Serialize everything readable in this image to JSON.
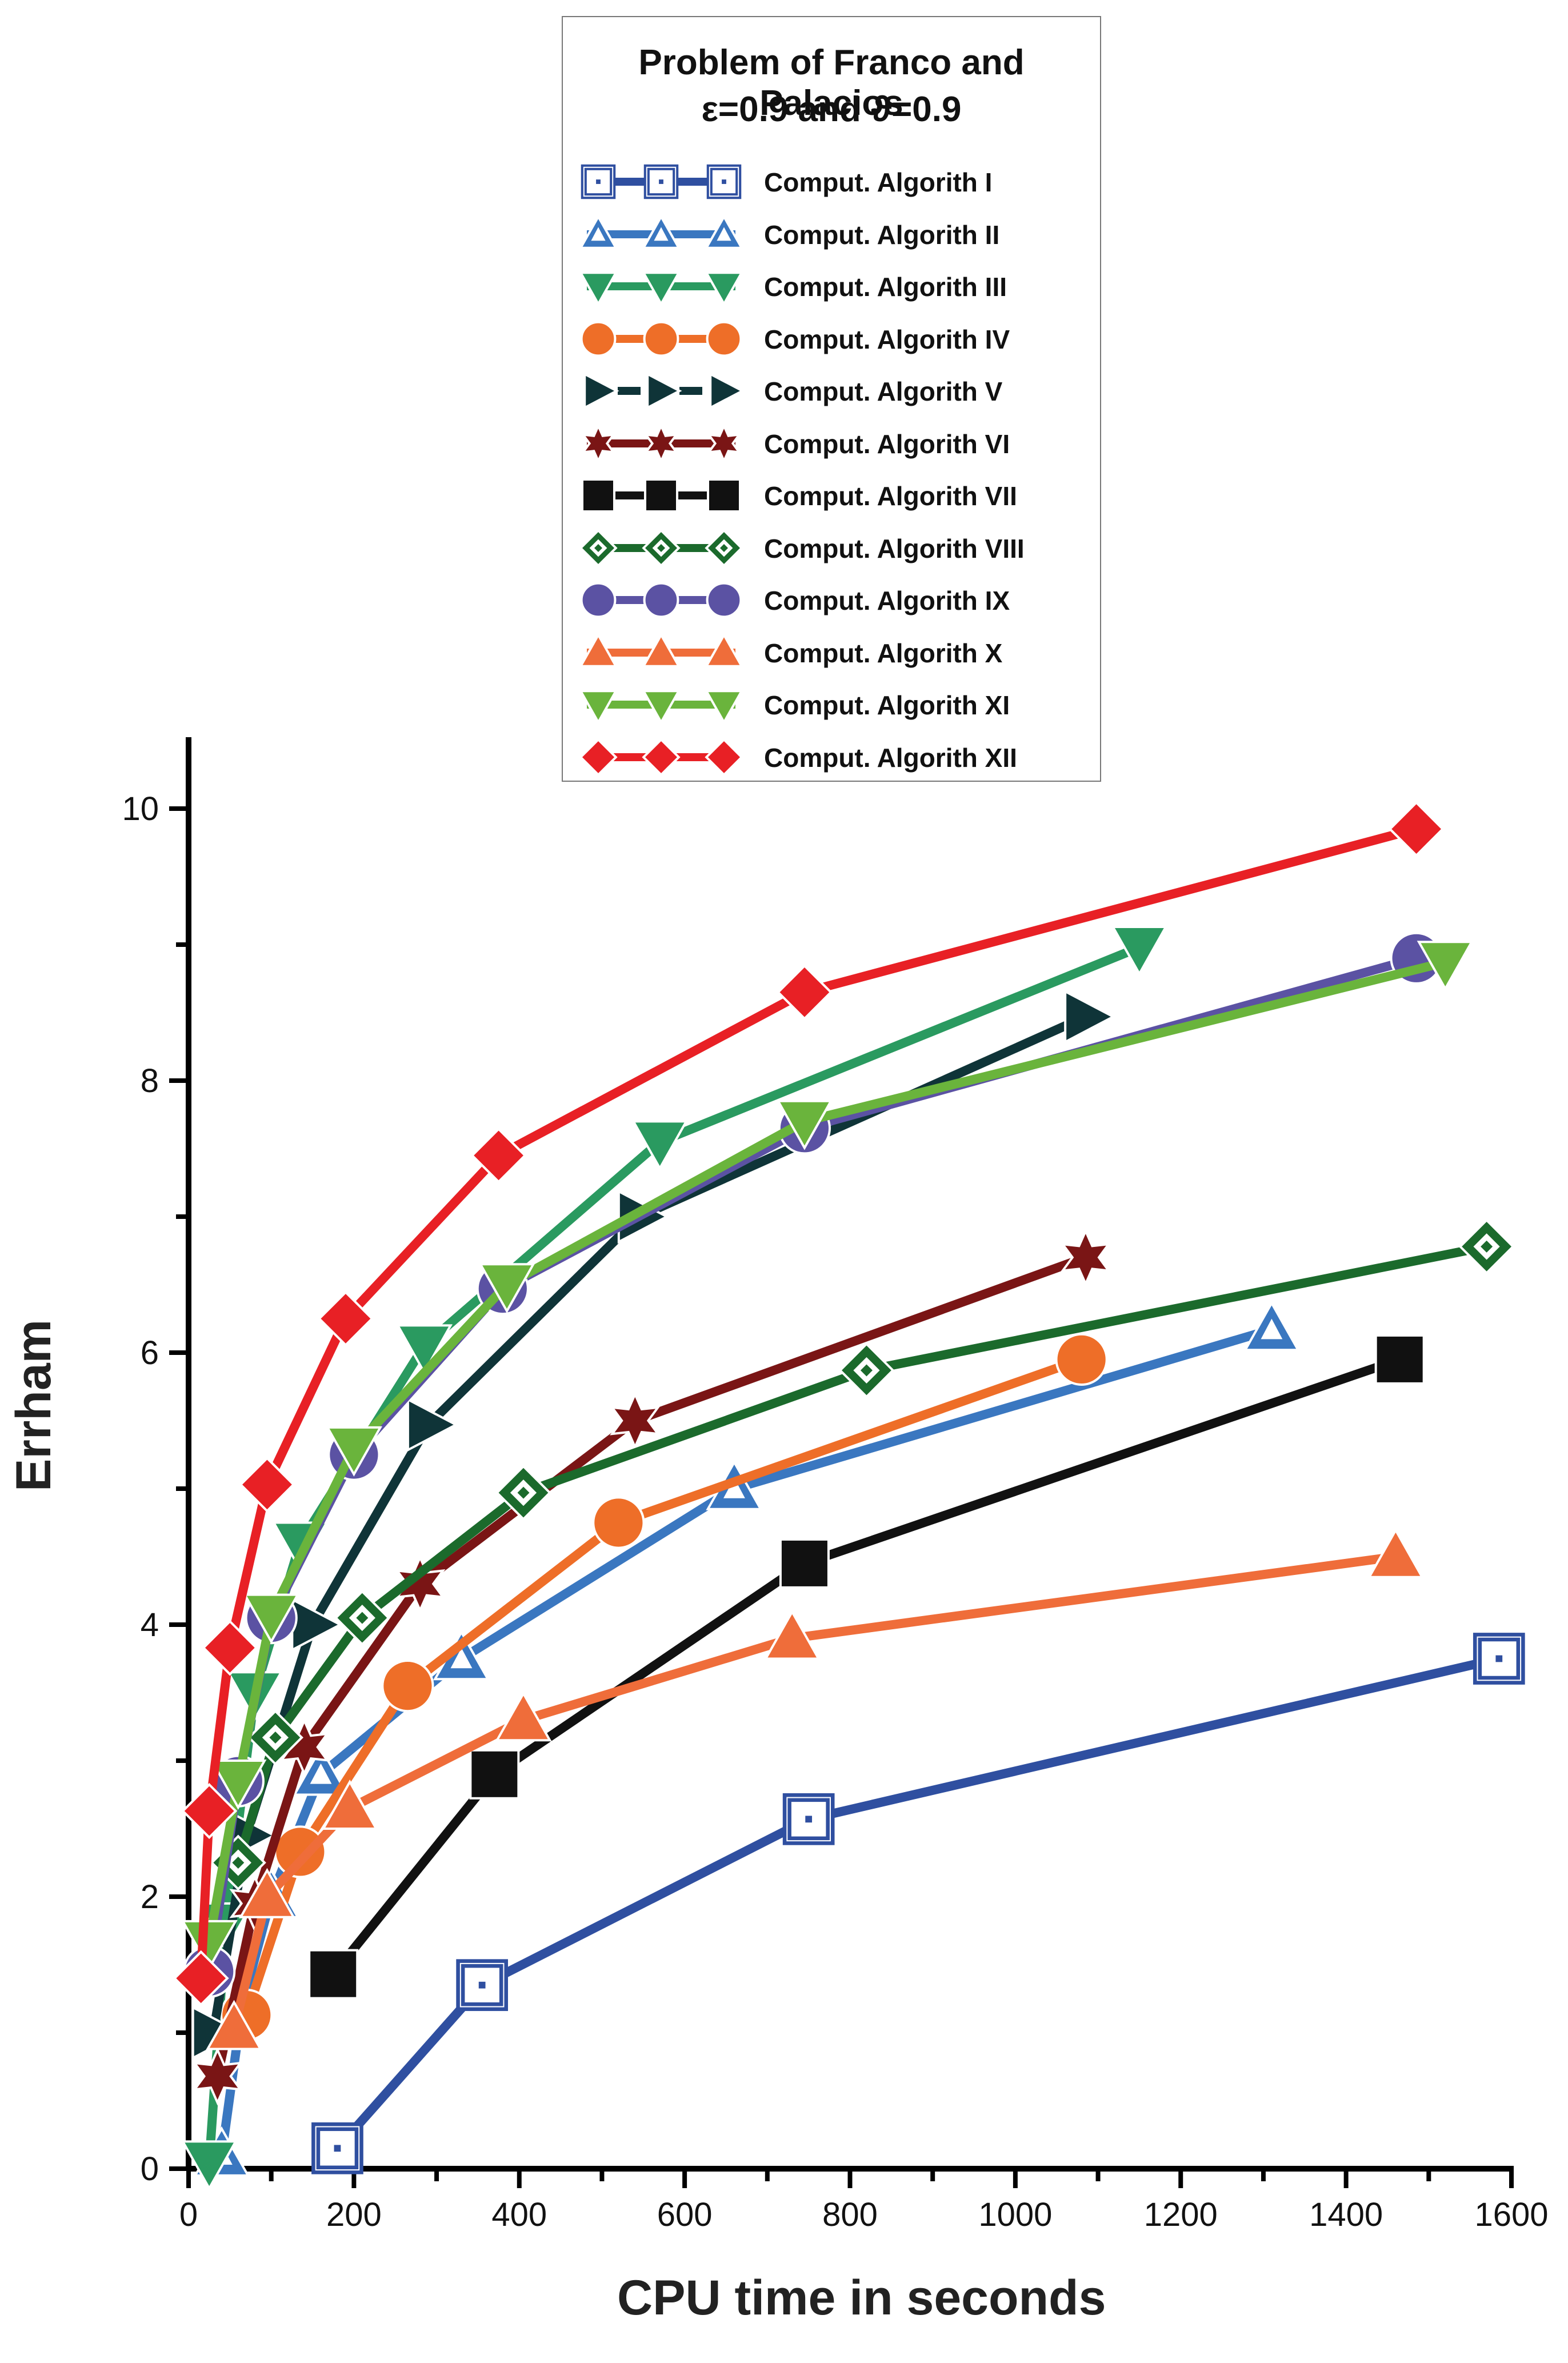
{
  "chart_data": {
    "type": "line",
    "title": "Problem of Franco and Palacios",
    "subtitle": "ε=0.9 and ϑ=0.9",
    "xlabel": "CPU time in seconds",
    "ylabel": "Errham",
    "xlim": [
      0,
      1600
    ],
    "ylim": [
      0,
      10
    ],
    "xticks": [
      0,
      200,
      400,
      600,
      800,
      1000,
      1200,
      1400,
      1600
    ],
    "yticks": [
      0,
      2,
      4,
      6,
      8,
      10
    ],
    "grid": false,
    "legend_position": "top-center",
    "series": [
      {
        "name": "Comput. Algorith I",
        "color": "#2f4fa0",
        "marker": "square-open",
        "x": [
          180,
          355,
          750,
          1585
        ],
        "y": [
          0.15,
          1.35,
          2.57,
          3.75
        ]
      },
      {
        "name": "Comput. Algorith II",
        "color": "#3a77c0",
        "marker": "triangle-open",
        "x": [
          40,
          65,
          100,
          160,
          330,
          660,
          1310
        ],
        "y": [
          0.1,
          1.2,
          2.0,
          2.9,
          3.75,
          5.0,
          6.17
        ]
      },
      {
        "name": "Comput. Algorith III",
        "color": "#2a9a60",
        "marker": "triangle-down",
        "x": [
          25,
          45,
          80,
          135,
          285,
          570,
          1150
        ],
        "y": [
          0.05,
          1.8,
          3.5,
          4.6,
          6.05,
          7.55,
          8.98
        ]
      },
      {
        "name": "Comput. Algorith IV",
        "color": "#ee6e28",
        "marker": "circle",
        "x": [
          70,
          135,
          265,
          520,
          1080
        ],
        "y": [
          1.13,
          2.33,
          3.55,
          4.75,
          5.95
        ]
      },
      {
        "name": "Comput. Algorith V",
        "color": "#0f3438",
        "marker": "triangle-right",
        "x": [
          30,
          70,
          150,
          290,
          545,
          1085
        ],
        "y": [
          1.0,
          2.45,
          4.0,
          5.47,
          7.0,
          8.47
        ]
      },
      {
        "name": "Comput. Algorith VI",
        "color": "#7a1515",
        "marker": "star",
        "x": [
          35,
          80,
          140,
          280,
          540,
          1085
        ],
        "y": [
          0.68,
          1.95,
          3.1,
          4.3,
          5.5,
          6.7
        ]
      },
      {
        "name": "Comput. Algorith VII",
        "color": "#111111",
        "marker": "square",
        "x": [
          175,
          370,
          745,
          1465
        ],
        "y": [
          1.43,
          2.9,
          4.45,
          5.95
        ]
      },
      {
        "name": "Comput. Algorith VIII",
        "color": "#1b6a2c",
        "marker": "diamond-open",
        "x": [
          60,
          105,
          210,
          405,
          820,
          1570
        ],
        "y": [
          2.25,
          3.17,
          4.05,
          4.97,
          5.87,
          6.78
        ]
      },
      {
        "name": "Comput. Algorith IX",
        "color": "#5b52a3",
        "marker": "circle",
        "x": [
          25,
          60,
          100,
          200,
          380,
          745,
          1485
        ],
        "y": [
          1.45,
          2.85,
          4.05,
          5.25,
          6.47,
          7.65,
          8.9
        ]
      },
      {
        "name": "Comput. Algorith X",
        "color": "#ef6d3a",
        "marker": "triangle-up",
        "x": [
          55,
          95,
          195,
          405,
          730,
          1460
        ],
        "y": [
          1.03,
          2.0,
          2.65,
          3.3,
          3.9,
          4.5
        ]
      },
      {
        "name": "Comput. Algorith XI",
        "color": "#6ab43c",
        "marker": "triangle-down",
        "x": [
          25,
          60,
          100,
          200,
          385,
          745,
          1520
        ],
        "y": [
          1.67,
          2.85,
          4.07,
          5.3,
          6.5,
          7.7,
          8.87
        ]
      },
      {
        "name": "Comput. Algorith XII",
        "color": "#e82025",
        "marker": "diamond",
        "x": [
          15,
          25,
          50,
          95,
          190,
          375,
          745,
          1485
        ],
        "y": [
          1.4,
          2.63,
          3.83,
          5.03,
          6.25,
          7.45,
          8.65,
          9.85
        ]
      }
    ]
  }
}
